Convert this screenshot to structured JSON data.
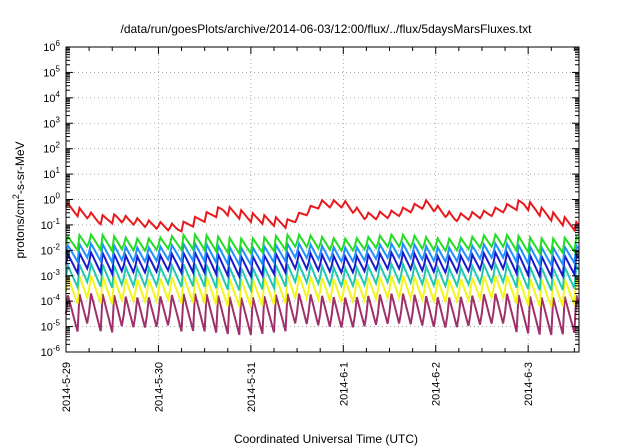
{
  "chart_data": {
    "type": "line",
    "title": "/data/run/goesPlots/archive/2014-06-03/12:00/flux/../flux/5daysMarsFluxes.txt",
    "xlabel": "Coordinated Universal Time (UTC)",
    "ylabel_parts": {
      "base": "protons/cm",
      "exp": "2",
      "rest": "-s-sr-MeV"
    },
    "xlim": [
      0,
      5.55
    ],
    "x_ticks": [
      {
        "x": 0,
        "label": "2014-5-29"
      },
      {
        "x": 1,
        "label": "2014-5-30"
      },
      {
        "x": 2,
        "label": "2014-5-31"
      },
      {
        "x": 3,
        "label": "2014-6-1"
      },
      {
        "x": 4,
        "label": "2014-6-2"
      },
      {
        "x": 5,
        "label": "2014-6-3"
      }
    ],
    "yscale": "log",
    "ylim_exp": [
      -6,
      6
    ],
    "y_ticks": [
      {
        "exp": 6,
        "base": "10",
        "sup": "6"
      },
      {
        "exp": 5,
        "base": "10",
        "sup": "5"
      },
      {
        "exp": 4,
        "base": "10",
        "sup": "4"
      },
      {
        "exp": 3,
        "base": "10",
        "sup": "3"
      },
      {
        "exp": 2,
        "base": "10",
        "sup": "2"
      },
      {
        "exp": 1,
        "base": "10",
        "sup": "1"
      },
      {
        "exp": 0,
        "base": "10",
        "sup": "0"
      },
      {
        "exp": -1,
        "base": "10",
        "sup": "-1"
      },
      {
        "exp": -2,
        "base": "10",
        "sup": "-2"
      },
      {
        "exp": -3,
        "base": "10",
        "sup": "-3"
      },
      {
        "exp": -4,
        "base": "10",
        "sup": "-4"
      },
      {
        "exp": -5,
        "base": "10",
        "sup": "-5"
      },
      {
        "exp": -6,
        "base": "10",
        "sup": "-6"
      }
    ],
    "grid": true,
    "sawtooth_period_days": 0.125,
    "series": [
      {
        "color": "#e8191c",
        "values_log10_daily_anchor": [
          {
            "x": 0.0,
            "y": -0.3
          },
          {
            "x": 0.35,
            "y": -0.8
          },
          {
            "x": 0.55,
            "y": -0.75
          },
          {
            "x": 0.9,
            "y": -1.0
          },
          {
            "x": 1.2,
            "y": -1.15
          },
          {
            "x": 1.5,
            "y": -0.7
          },
          {
            "x": 1.7,
            "y": -0.4
          },
          {
            "x": 2.0,
            "y": -0.7
          },
          {
            "x": 2.4,
            "y": -0.95
          },
          {
            "x": 2.75,
            "y": -0.2
          },
          {
            "x": 3.0,
            "y": -0.2
          },
          {
            "x": 3.25,
            "y": -0.7
          },
          {
            "x": 3.55,
            "y": -0.6
          },
          {
            "x": 3.9,
            "y": -0.2
          },
          {
            "x": 4.2,
            "y": -0.75
          },
          {
            "x": 4.55,
            "y": -0.6
          },
          {
            "x": 4.95,
            "y": -0.15
          },
          {
            "x": 5.15,
            "y": -0.5
          },
          {
            "x": 5.55,
            "y": -1.1
          }
        ],
        "sawtooth_amp": 0.18
      },
      {
        "color": "#22dd22",
        "mean_log10": -1.75,
        "sawtooth_amp": 0.3
      },
      {
        "color": "#1e90ff",
        "mean_log10": -2.15,
        "sawtooth_amp": 0.35
      },
      {
        "color": "#1a1acc",
        "mean_log10": -2.55,
        "sawtooth_amp": 0.4
      },
      {
        "color": "#22c9b0",
        "mean_log10": -3.05,
        "sawtooth_amp": 0.45
      },
      {
        "color": "#f5f51a",
        "mean_log10": -3.6,
        "sawtooth_amp": 0.55
      },
      {
        "color": "#a0306a",
        "mean_log10": -4.5,
        "sawtooth_amp": 0.75
      }
    ]
  }
}
